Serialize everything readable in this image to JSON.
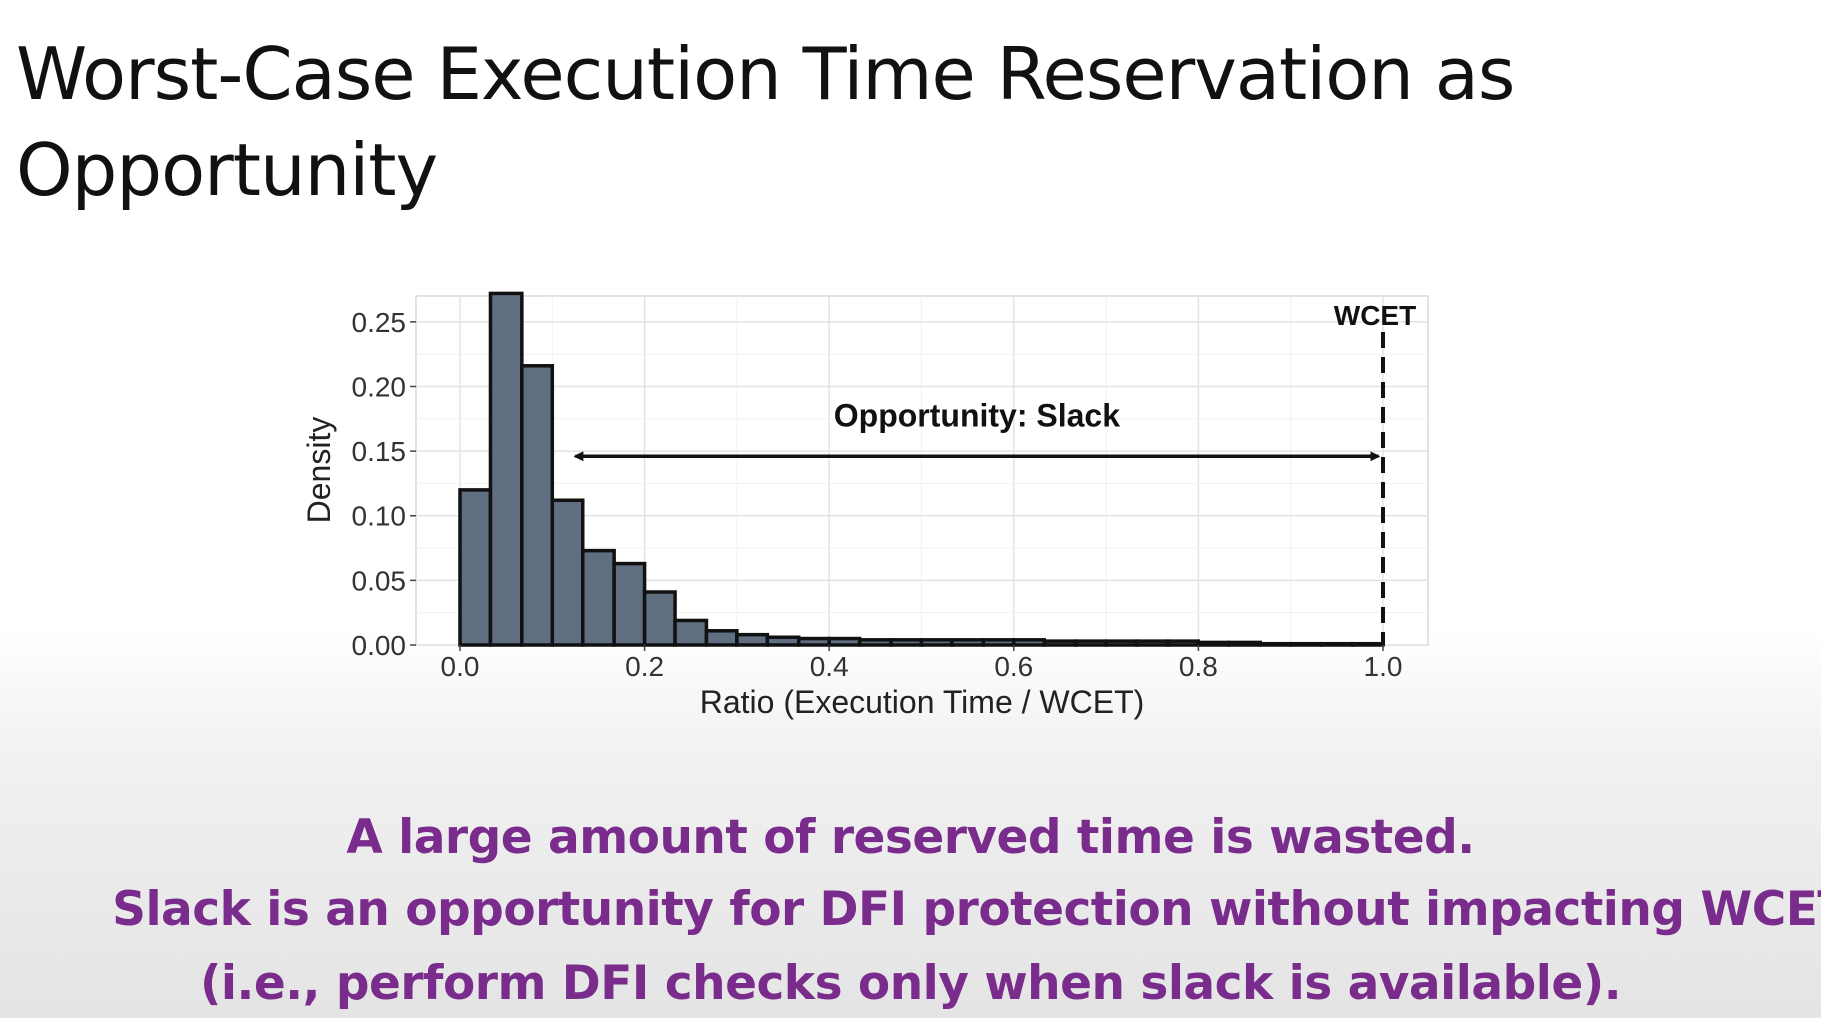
{
  "slide": {
    "title": "Worst-Case Execution Time Reservation as\nOpportunity"
  },
  "chart_data": {
    "type": "bar",
    "subtype": "histogram",
    "xlabel": "Ratio (Execution Time / WCET)",
    "ylabel": "Density",
    "xlim": [
      0.0,
      1.0
    ],
    "ylim": [
      0.0,
      0.27
    ],
    "xticks": [
      "0.0",
      "0.2",
      "0.4",
      "0.6",
      "0.8",
      "1.0"
    ],
    "yticks": [
      "0.00",
      "0.05",
      "0.10",
      "0.15",
      "0.20",
      "0.25"
    ],
    "grid": true,
    "bin_width": 0.0333,
    "bins": [
      {
        "x0": 0.0,
        "x1": 0.033,
        "value": 0.12
      },
      {
        "x0": 0.033,
        "x1": 0.067,
        "value": 0.272
      },
      {
        "x0": 0.067,
        "x1": 0.1,
        "value": 0.216
      },
      {
        "x0": 0.1,
        "x1": 0.133,
        "value": 0.112
      },
      {
        "x0": 0.133,
        "x1": 0.167,
        "value": 0.073
      },
      {
        "x0": 0.167,
        "x1": 0.2,
        "value": 0.063
      },
      {
        "x0": 0.2,
        "x1": 0.233,
        "value": 0.041
      },
      {
        "x0": 0.233,
        "x1": 0.267,
        "value": 0.019
      },
      {
        "x0": 0.267,
        "x1": 0.3,
        "value": 0.011
      },
      {
        "x0": 0.3,
        "x1": 0.333,
        "value": 0.008
      },
      {
        "x0": 0.333,
        "x1": 0.367,
        "value": 0.006
      },
      {
        "x0": 0.367,
        "x1": 0.4,
        "value": 0.005
      },
      {
        "x0": 0.4,
        "x1": 0.433,
        "value": 0.005
      },
      {
        "x0": 0.433,
        "x1": 0.467,
        "value": 0.004
      },
      {
        "x0": 0.467,
        "x1": 0.5,
        "value": 0.004
      },
      {
        "x0": 0.5,
        "x1": 0.533,
        "value": 0.004
      },
      {
        "x0": 0.533,
        "x1": 0.567,
        "value": 0.004
      },
      {
        "x0": 0.567,
        "x1": 0.6,
        "value": 0.004
      },
      {
        "x0": 0.6,
        "x1": 0.633,
        "value": 0.004
      },
      {
        "x0": 0.633,
        "x1": 0.667,
        "value": 0.003
      },
      {
        "x0": 0.667,
        "x1": 0.7,
        "value": 0.003
      },
      {
        "x0": 0.7,
        "x1": 0.733,
        "value": 0.003
      },
      {
        "x0": 0.733,
        "x1": 0.767,
        "value": 0.003
      },
      {
        "x0": 0.767,
        "x1": 0.8,
        "value": 0.003
      },
      {
        "x0": 0.8,
        "x1": 0.833,
        "value": 0.002
      },
      {
        "x0": 0.833,
        "x1": 0.867,
        "value": 0.002
      },
      {
        "x0": 0.867,
        "x1": 0.9,
        "value": 0.001
      },
      {
        "x0": 0.9,
        "x1": 0.933,
        "value": 0.001
      },
      {
        "x0": 0.933,
        "x1": 0.967,
        "value": 0.001
      },
      {
        "x0": 0.967,
        "x1": 1.0,
        "value": 0.001
      }
    ],
    "bar_color": "#5f6e80",
    "vline": {
      "x": 1.0,
      "label": "WCET",
      "style": "dashed"
    },
    "arrow": {
      "x0": 0.125,
      "x1": 0.995,
      "y": 0.146,
      "label": "Opportunity: Slack"
    }
  },
  "captions": {
    "line1": "A large amount of reserved time is wasted.",
    "line2": "Slack is an opportunity for DFI protection without impacting WCET",
    "line3": "(i.e., perform DFI checks only when slack is available)."
  },
  "colors": {
    "caption": "#7a2c8c",
    "bar_fill": "#5f6e80",
    "bar_stroke": "#111111"
  }
}
